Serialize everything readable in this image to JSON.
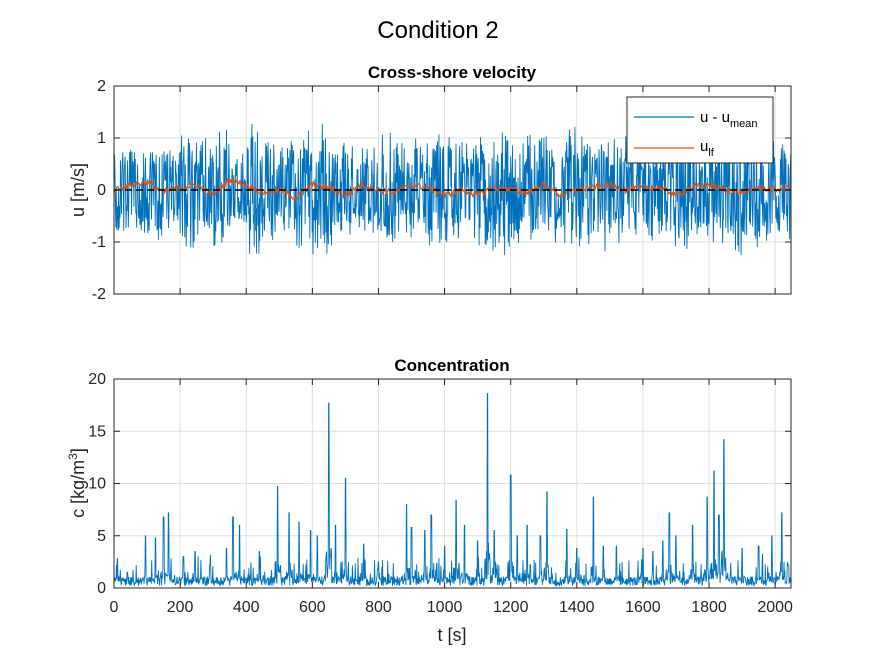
{
  "figure": {
    "title": "Condition 2"
  },
  "colors": {
    "series1": "#0072BD",
    "series2": "#D95319",
    "zero_line": "#000000",
    "grid": "#DFDFDF",
    "axes": "#262626"
  },
  "chart_data": [
    {
      "type": "line",
      "title": "Cross-shore velocity",
      "ylabel": "u [m/s]",
      "xlabel": "",
      "xlim": [
        0,
        2048
      ],
      "ylim": [
        -2,
        2
      ],
      "xticks": [
        0,
        200,
        400,
        600,
        800,
        1000,
        1200,
        1400,
        1600,
        1800,
        2000
      ],
      "yticks": [
        -2,
        -1,
        0,
        1,
        2
      ],
      "x_tick_labels_shown": false,
      "grid": true,
      "legend": {
        "location": "top-right",
        "entries": [
          {
            "main": "u - u",
            "sub": "mean"
          },
          {
            "main": "u",
            "sub": "lf"
          }
        ]
      },
      "reference_line": {
        "y": 0,
        "style": "dashed"
      },
      "series": [
        {
          "name": "u - u mean",
          "sample_step": 50,
          "x_start": 0,
          "values": [
            0.9,
            -1.0,
            1.1,
            -0.9,
            1.2,
            -1.1,
            1.2,
            -0.8,
            1.3,
            -1.0,
            1.1,
            -1.2,
            1.3,
            -1.1,
            0.9,
            -0.9,
            1.2,
            -1.0,
            1.0,
            -1.2,
            1.1,
            -1.0,
            1.3,
            -1.3,
            1.2,
            -1.1,
            1.1,
            -1.4,
            1.2,
            -1.2,
            1.1,
            -0.9,
            1.0,
            -1.1,
            1.2,
            -1.0,
            1.1,
            -1.3,
            1.2,
            -1.1,
            1.1,
            -1.0
          ]
        },
        {
          "name": "u lf",
          "sample_step": 50,
          "x_start": 0,
          "values": [
            0.0,
            0.1,
            0.15,
            -0.05,
            0.05,
            0.1,
            -0.1,
            0.2,
            0.1,
            -0.05,
            0.0,
            -0.15,
            0.1,
            0.05,
            -0.1,
            0.1,
            0.0,
            -0.05,
            0.1,
            0.05,
            -0.1,
            0.0,
            -0.1,
            0.05,
            0.0,
            -0.05,
            0.1,
            -0.1,
            0.0,
            0.05,
            0.1,
            0.0,
            0.05,
            0.05,
            -0.1,
            0.05,
            0.1,
            0.0,
            -0.05,
            0.05,
            0.0,
            0.05
          ]
        }
      ]
    },
    {
      "type": "line",
      "title": "Concentration",
      "ylabel_main": "c [kg/m",
      "ylabel_sup": "3",
      "ylabel_end": "]",
      "xlabel": "t [s]",
      "xlim": [
        0,
        2048
      ],
      "ylim": [
        0,
        20
      ],
      "xticks": [
        0,
        200,
        400,
        600,
        800,
        1000,
        1200,
        1400,
        1600,
        1800,
        2000
      ],
      "yticks": [
        0,
        5,
        10,
        15,
        20
      ],
      "grid": true,
      "series": [
        {
          "name": "c",
          "peaks": [
            [
              10,
              2.8
            ],
            [
              40,
              1.5
            ],
            [
              95,
              5.0
            ],
            [
              125,
              4.8
            ],
            [
              150,
              6.8
            ],
            [
              165,
              7.2
            ],
            [
              210,
              3.0
            ],
            [
              245,
              3.5
            ],
            [
              290,
              2.2
            ],
            [
              340,
              3.8
            ],
            [
              360,
              6.8
            ],
            [
              380,
              6.0
            ],
            [
              440,
              3.5
            ],
            [
              495,
              9.7
            ],
            [
              530,
              7.2
            ],
            [
              560,
              6.3
            ],
            [
              595,
              5.5
            ],
            [
              615,
              5.0
            ],
            [
              650,
              17.7
            ],
            [
              670,
              6.0
            ],
            [
              700,
              10.5
            ],
            [
              755,
              4.2
            ],
            [
              800,
              2.5
            ],
            [
              885,
              8.0
            ],
            [
              900,
              5.8
            ],
            [
              940,
              5.5
            ],
            [
              960,
              7.0
            ],
            [
              1000,
              4.0
            ],
            [
              1035,
              8.4
            ],
            [
              1060,
              6.0
            ],
            [
              1100,
              4.5
            ],
            [
              1130,
              18.6
            ],
            [
              1150,
              5.5
            ],
            [
              1200,
              10.8
            ],
            [
              1220,
              5.0
            ],
            [
              1250,
              6.0
            ],
            [
              1290,
              5.0
            ],
            [
              1310,
              9.2
            ],
            [
              1370,
              5.6
            ],
            [
              1400,
              3.8
            ],
            [
              1450,
              8.7
            ],
            [
              1480,
              4.0
            ],
            [
              1520,
              4.0
            ],
            [
              1600,
              3.8
            ],
            [
              1630,
              3.5
            ],
            [
              1660,
              4.5
            ],
            [
              1680,
              7.2
            ],
            [
              1700,
              5.0
            ],
            [
              1750,
              6.0
            ],
            [
              1795,
              8.7
            ],
            [
              1815,
              11.2
            ],
            [
              1830,
              7.0
            ],
            [
              1845,
              14.2
            ],
            [
              1900,
              3.8
            ],
            [
              1950,
              4.0
            ],
            [
              1990,
              5.0
            ],
            [
              2020,
              7.2
            ],
            [
              2040,
              2.2
            ]
          ]
        }
      ]
    }
  ]
}
